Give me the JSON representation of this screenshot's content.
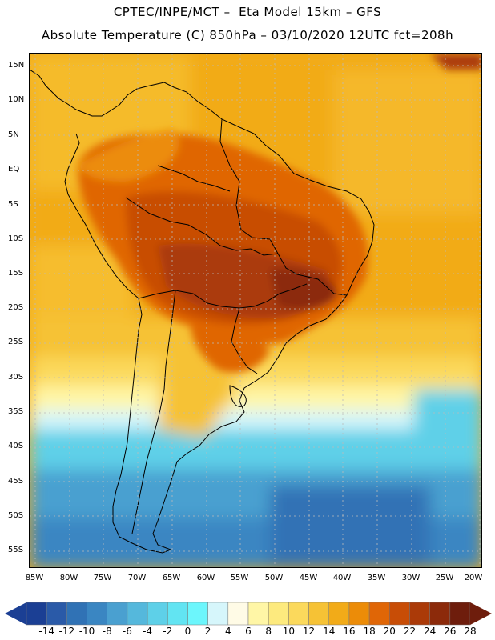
{
  "header": {
    "line1": "CPTEC/INPE/MCT –  Eta Model 15km – GFS",
    "line2": "Absolute Temperature (C) 850hPa – 03/10/2020 12UTC fct=208h"
  },
  "map": {
    "lat_ticks": [
      "15N",
      "10N",
      "5N",
      "EQ",
      "5S",
      "10S",
      "15S",
      "20S",
      "25S",
      "30S",
      "35S",
      "40S",
      "45S",
      "50S",
      "55S"
    ],
    "lon_ticks": [
      "85W",
      "80W",
      "75W",
      "70W",
      "65W",
      "60W",
      "55W",
      "50W",
      "45W",
      "40W",
      "35W",
      "30W",
      "25W",
      "20W"
    ]
  },
  "colorbar": {
    "labels": [
      "-14",
      "-12",
      "-10",
      "-8",
      "-6",
      "-4",
      "-2",
      "0",
      "2",
      "4",
      "6",
      "8",
      "10",
      "12",
      "14",
      "16",
      "18",
      "20",
      "22",
      "24",
      "26",
      "28"
    ],
    "colors": [
      "#1b3f94",
      "#2a5aa8",
      "#3072b5",
      "#3a86c2",
      "#4aa0d0",
      "#55b8dc",
      "#5ed0e8",
      "#62e4f2",
      "#6cf6fc",
      "#d6f6fb",
      "#fffbe6",
      "#fff6a6",
      "#fdea7e",
      "#fbd95c",
      "#f6c235",
      "#f2ab18",
      "#ec8c08",
      "#e06606",
      "#c84d06",
      "#ab3a08",
      "#8c2a0a",
      "#6e1d0c"
    ]
  }
}
